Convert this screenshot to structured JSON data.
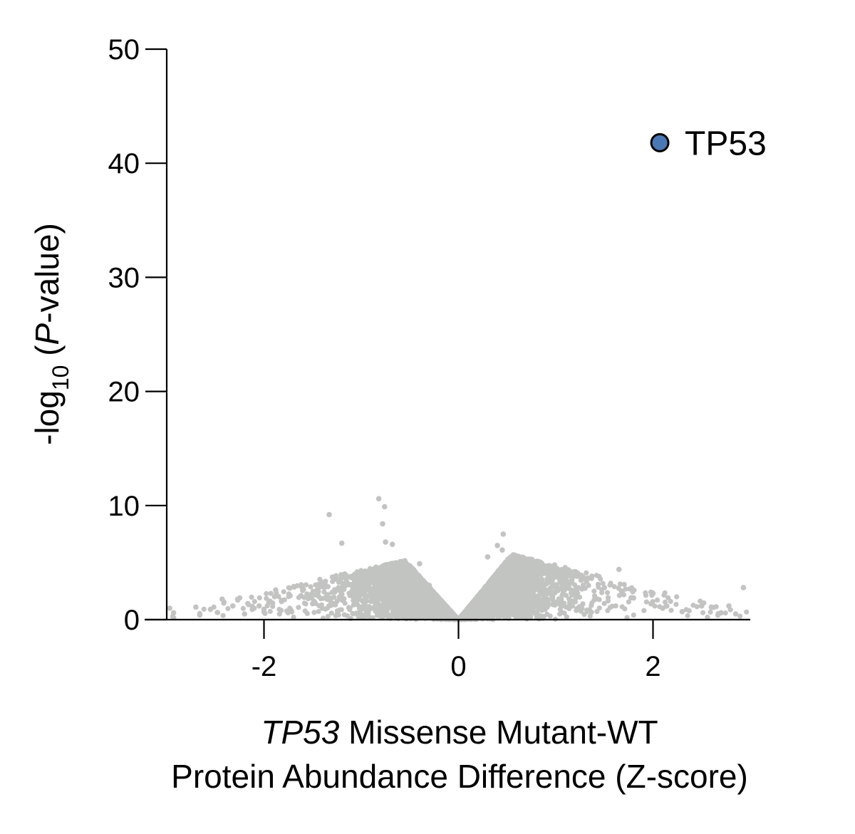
{
  "chart_data": {
    "type": "scatter",
    "title": "",
    "xlabel_italic": "TP53",
    "xlabel_line1_rest": " Missense Mutant-WT",
    "xlabel_line2": "Protein Abundance Difference (Z-score)",
    "ylabel_prefix": "-log",
    "ylabel_sub": "10",
    "ylabel_open": " (",
    "ylabel_italic": "P",
    "ylabel_suffix": "-value)",
    "xlim": [
      -3.0,
      3.0
    ],
    "ylim": [
      0,
      50
    ],
    "xticks": [
      -2,
      0,
      2
    ],
    "xtick_labels": [
      "-2",
      "0",
      "2"
    ],
    "yticks": [
      0,
      10,
      20,
      30,
      40,
      50
    ],
    "ytick_labels": [
      "0",
      "10",
      "20",
      "30",
      "40",
      "50"
    ],
    "grid": false,
    "background_color": "#c2c4c1",
    "highlight_color": "#4a78b4",
    "background_series": {
      "approx_points": 9000,
      "x": [
        -2.97,
        -2.93,
        -2.7,
        -2.66,
        -2.55,
        -2.43,
        -2.32,
        -2.25,
        -2.2,
        -2.12,
        -2.05,
        -2.0,
        -1.95,
        -1.88,
        -1.82,
        -1.72,
        -1.62,
        -1.5,
        -1.4,
        -1.33,
        -1.2,
        -0.82,
        -0.78,
        -0.76,
        -0.75,
        -0.68,
        -0.4,
        -0.3,
        0.3,
        0.4,
        0.46,
        0.45,
        0.6,
        0.8,
        0.9,
        1.0,
        1.2,
        1.3,
        1.5,
        1.65,
        1.8,
        2.0,
        2.1,
        2.3,
        2.5,
        2.6,
        2.7,
        2.78,
        2.85,
        2.93
      ],
      "y": [
        1.0,
        0.6,
        1.1,
        0.4,
        0.9,
        1.8,
        1.2,
        1.9,
        0.5,
        0.9,
        1.2,
        0.9,
        1.5,
        2.6,
        1.6,
        0.8,
        2.1,
        1.4,
        1.0,
        9.2,
        6.7,
        10.6,
        8.4,
        9.9,
        6.8,
        6.6,
        4.9,
        3.0,
        5.5,
        6.5,
        7.5,
        6.1,
        4.5,
        5.0,
        4.3,
        4.0,
        4.2,
        3.6,
        2.8,
        4.4,
        1.9,
        2.3,
        1.0,
        0.7,
        1.2,
        1.1,
        0.6,
        1.2,
        0.5,
        2.8
      ]
    },
    "highlight_points": [
      {
        "label": "TP53",
        "x": 2.07,
        "y": 41.8
      }
    ]
  }
}
